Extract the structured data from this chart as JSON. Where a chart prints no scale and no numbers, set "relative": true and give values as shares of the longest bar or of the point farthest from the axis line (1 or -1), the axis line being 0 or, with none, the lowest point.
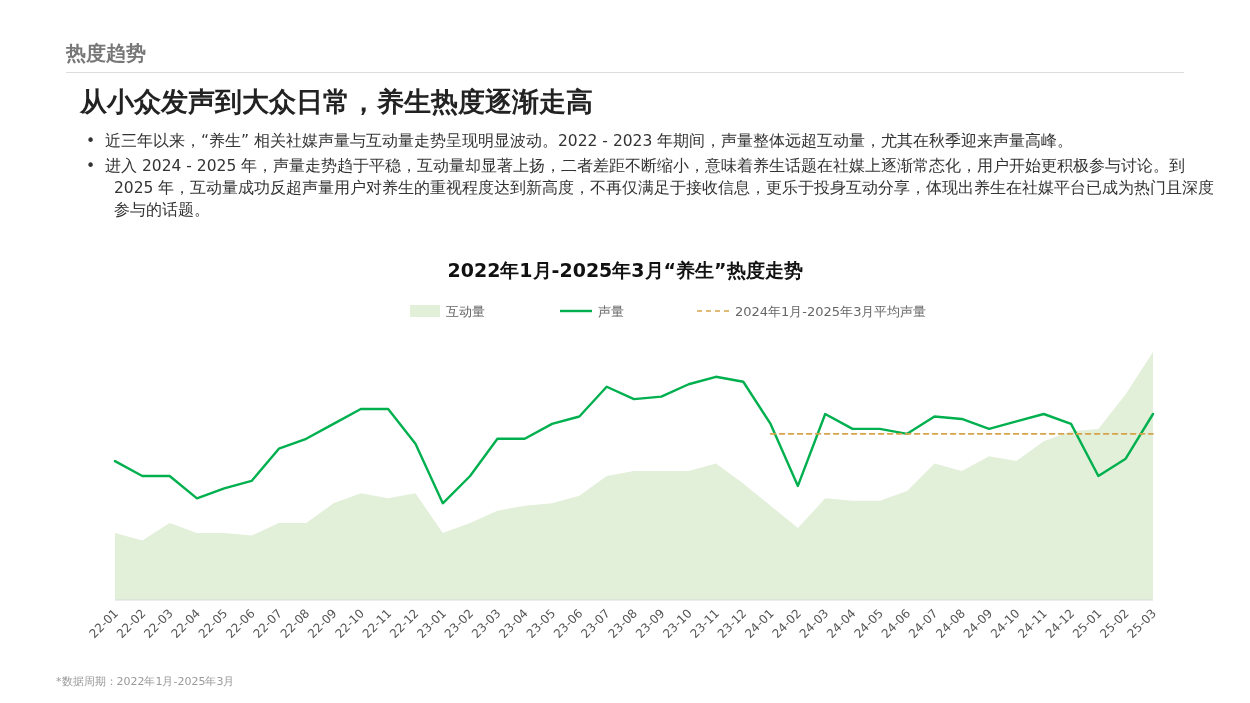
{
  "chart_data": {
    "type": "line",
    "title": "从小众发声到大众日常，养生热度逐渐走高",
    "subtitle": "2022年1月-2025年3月“养生”热度走势",
    "relative": true,
    "legend": "top",
    "annotations": [
      "热度趋势",
      "•  近三年以来，“养生” 相关社媒声量与互动量走势呈现明显波动。2022 - 2023 年期间，声量整体远超互动量，尤其在秋季迎来声量高峰。",
      "•  进入 2024 - 2025 年，声量走势趋于平稳，互动量却显著上扬，二者差距不断缩小，意味着养生话题在社媒上逐渐常态化，用户开始更积极参与讨论。到 2025 年，互动量成功反超声量用户对养生的重视程度达到新高度，不再仅满足于接收信息，更乐于投身互动分享，体现出养生在社媒平台已成为热门且深度参与的话题。",
      "*数据周期：2022年1月-2025年3月"
    ],
    "categories": [
      "22-01",
      "22-02",
      "22-03",
      "22-04",
      "22-05",
      "22-06",
      "22-07",
      "22-08",
      "22-09",
      "22-10",
      "22-11",
      "22-12",
      "23-01",
      "23-02",
      "23-03",
      "23-04",
      "23-05",
      "23-06",
      "23-07",
      "23-08",
      "23-09",
      "23-10",
      "23-11",
      "23-12",
      "24-01",
      "24-02",
      "24-03",
      "24-04",
      "24-05",
      "24-06",
      "24-07",
      "24-08",
      "24-09",
      "24-10",
      "24-11",
      "24-12",
      "25-01",
      "25-02",
      "25-03"
    ],
    "series": [
      {
        "name": "互动量",
        "type": "area",
        "color": "#e2efd9",
        "values": [
          0.27,
          0.24,
          0.31,
          0.27,
          0.27,
          0.26,
          0.31,
          0.31,
          0.39,
          0.43,
          0.41,
          0.43,
          0.27,
          0.31,
          0.36,
          0.38,
          0.39,
          0.42,
          0.5,
          0.52,
          0.52,
          0.52,
          0.55,
          0.47,
          0.38,
          0.29,
          0.41,
          0.4,
          0.4,
          0.44,
          0.55,
          0.52,
          0.58,
          0.56,
          0.64,
          0.68,
          0.69,
          0.83,
          1
        ]
      },
      {
        "name": "声量",
        "type": "line",
        "color": "#00b04f",
        "values": [
          0.56,
          0.5,
          0.5,
          0.41,
          0.45,
          0.48,
          0.61,
          0.65,
          0.71,
          0.77,
          0.77,
          0.63,
          0.39,
          0.5,
          0.65,
          0.65,
          0.71,
          0.74,
          0.86,
          0.81,
          0.82,
          0.87,
          0.9,
          0.88,
          0.71,
          0.46,
          0.75,
          0.69,
          0.69,
          0.67,
          0.74,
          0.73,
          0.69,
          0.72,
          0.75,
          0.71,
          0.5,
          0.57,
          0.75
        ]
      },
      {
        "name": "2024年1月-2025年3月平均声量",
        "type": "line",
        "line_style": "dashed",
        "color": "#d6a24a",
        "x": [
          "24-01",
          "24-02",
          "24-03",
          "24-04",
          "24-05",
          "24-06",
          "24-07",
          "24-08",
          "24-09",
          "24-10",
          "24-11",
          "24-12",
          "25-01",
          "25-02",
          "25-03"
        ],
        "values": [
          0.67,
          0.67,
          0.67,
          0.67,
          0.67,
          0.67,
          0.67,
          0.67,
          0.67,
          0.67,
          0.67,
          0.67,
          0.67,
          0.67,
          0.67
        ]
      }
    ]
  }
}
